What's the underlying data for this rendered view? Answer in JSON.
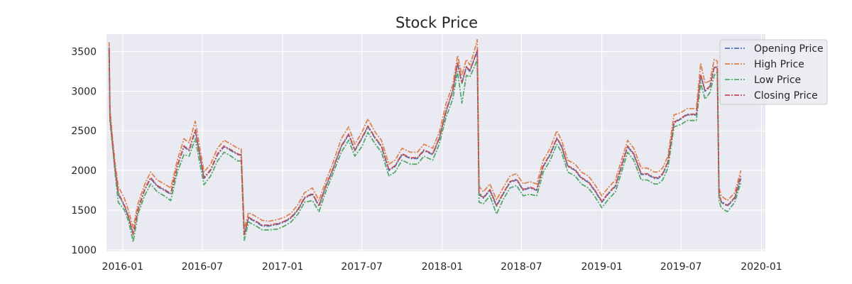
{
  "chart_data": {
    "type": "line",
    "title": "Stock Price",
    "xlabel": "",
    "ylabel": "",
    "x_ticks": [
      "2016-01",
      "2016-07",
      "2017-01",
      "2017-07",
      "2018-01",
      "2018-07",
      "2019-01",
      "2019-07",
      "2020-01"
    ],
    "y_ticks": [
      1000,
      1500,
      2000,
      2500,
      3000,
      3500
    ],
    "xlim": [
      "2015-11-25",
      "2020-01-10"
    ],
    "ylim": [
      980,
      3720
    ],
    "grid": true,
    "legend_position": "top-right",
    "line_style": "dash-dot",
    "x": [
      "2015-12-01",
      "2015-12-03",
      "2015-12-08",
      "2015-12-15",
      "2015-12-22",
      "2016-01-05",
      "2016-01-15",
      "2016-01-25",
      "2016-02-05",
      "2016-02-20",
      "2016-03-05",
      "2016-03-20",
      "2016-04-05",
      "2016-04-20",
      "2016-05-05",
      "2016-05-20",
      "2016-06-01",
      "2016-06-15",
      "2016-06-25",
      "2016-07-05",
      "2016-07-20",
      "2016-08-05",
      "2016-08-20",
      "2016-09-05",
      "2016-09-20",
      "2016-09-28",
      "2016-10-05",
      "2016-10-15",
      "2016-11-01",
      "2016-11-15",
      "2016-12-01",
      "2016-12-20",
      "2017-01-05",
      "2017-01-20",
      "2017-02-05",
      "2017-02-20",
      "2017-03-10",
      "2017-03-25",
      "2017-04-10",
      "2017-04-25",
      "2017-05-15",
      "2017-06-01",
      "2017-06-15",
      "2017-07-01",
      "2017-07-15",
      "2017-08-01",
      "2017-08-15",
      "2017-09-01",
      "2017-09-15",
      "2017-10-01",
      "2017-10-20",
      "2017-11-05",
      "2017-11-20",
      "2017-12-10",
      "2017-12-25",
      "2018-01-10",
      "2018-01-25",
      "2018-02-05",
      "2018-02-15",
      "2018-02-25",
      "2018-03-05",
      "2018-03-15",
      "2018-03-22",
      "2018-03-26",
      "2018-04-05",
      "2018-04-20",
      "2018-05-05",
      "2018-05-20",
      "2018-06-05",
      "2018-06-20",
      "2018-07-05",
      "2018-07-20",
      "2018-08-05",
      "2018-08-20",
      "2018-09-05",
      "2018-09-20",
      "2018-10-01",
      "2018-10-15",
      "2018-11-01",
      "2018-11-15",
      "2018-12-01",
      "2018-12-15",
      "2019-01-01",
      "2019-01-15",
      "2019-02-01",
      "2019-02-15",
      "2019-03-01",
      "2019-03-15",
      "2019-04-01",
      "2019-04-15",
      "2019-05-01",
      "2019-05-10",
      "2019-05-20",
      "2019-06-01",
      "2019-06-15",
      "2019-07-01",
      "2019-07-15",
      "2019-07-25",
      "2019-08-05",
      "2019-08-15",
      "2019-08-25",
      "2019-09-05",
      "2019-09-15",
      "2019-09-22",
      "2019-09-26",
      "2019-10-01",
      "2019-10-15",
      "2019-11-01",
      "2019-11-15"
    ],
    "series": [
      {
        "name": "Opening Price",
        "color": "#4c72b0",
        "values": [
          3550,
          2700,
          2400,
          2000,
          1700,
          1550,
          1400,
          1200,
          1500,
          1750,
          1900,
          1800,
          1750,
          1700,
          2050,
          2300,
          2250,
          2500,
          2200,
          1900,
          2000,
          2200,
          2300,
          2250,
          2200,
          2200,
          1200,
          1400,
          1350,
          1300,
          1300,
          1320,
          1350,
          1400,
          1500,
          1650,
          1700,
          1550,
          1800,
          2000,
          2300,
          2450,
          2250,
          2400,
          2550,
          2400,
          2300,
          2000,
          2050,
          2200,
          2150,
          2150,
          2250,
          2200,
          2400,
          2750,
          3000,
          3350,
          3100,
          3300,
          3250,
          3400,
          3500,
          1700,
          1650,
          1750,
          1550,
          1700,
          1850,
          1880,
          1750,
          1780,
          1750,
          2050,
          2200,
          2400,
          2300,
          2050,
          2000,
          1900,
          1850,
          1750,
          1600,
          1700,
          1800,
          2050,
          2300,
          2200,
          1950,
          1950,
          1900,
          1900,
          1950,
          2100,
          2600,
          2650,
          2700,
          2700,
          2700,
          3200,
          3000,
          3050,
          3300,
          3300,
          1700,
          1600,
          1550,
          1650,
          1900
        ]
      },
      {
        "name": "High Price",
        "color": "#dd8452",
        "values": [
          3620,
          2780,
          2450,
          2080,
          1800,
          1650,
          1480,
          1280,
          1580,
          1820,
          1980,
          1880,
          1830,
          1780,
          2130,
          2400,
          2350,
          2620,
          2300,
          1980,
          2080,
          2280,
          2380,
          2330,
          2280,
          2270,
          1260,
          1470,
          1420,
          1370,
          1360,
          1380,
          1410,
          1460,
          1570,
          1720,
          1780,
          1620,
          1870,
          2080,
          2400,
          2550,
          2330,
          2480,
          2650,
          2480,
          2380,
          2080,
          2130,
          2280,
          2230,
          2230,
          2330,
          2280,
          2480,
          2850,
          3080,
          3450,
          3200,
          3400,
          3330,
          3500,
          3650,
          1800,
          1730,
          1830,
          1630,
          1780,
          1930,
          1960,
          1830,
          1860,
          1830,
          2130,
          2280,
          2500,
          2380,
          2130,
          2080,
          1980,
          1930,
          1830,
          1680,
          1780,
          1880,
          2130,
          2380,
          2280,
          2030,
          2030,
          1980,
          1980,
          2030,
          2180,
          2700,
          2730,
          2780,
          2780,
          2780,
          3350,
          3100,
          3130,
          3400,
          3380,
          1780,
          1680,
          1620,
          1720,
          2000
        ]
      },
      {
        "name": "Low Price",
        "color": "#55a868",
        "values": [
          3480,
          2620,
          2350,
          1950,
          1600,
          1500,
          1350,
          1100,
          1450,
          1680,
          1830,
          1730,
          1680,
          1620,
          1980,
          2200,
          2180,
          2400,
          2100,
          1820,
          1930,
          2120,
          2230,
          2180,
          2120,
          2120,
          1120,
          1350,
          1300,
          1250,
          1250,
          1260,
          1300,
          1350,
          1450,
          1600,
          1620,
          1480,
          1740,
          1950,
          2230,
          2380,
          2180,
          2300,
          2480,
          2330,
          2230,
          1930,
          1980,
          2130,
          2080,
          2080,
          2180,
          2130,
          2330,
          2680,
          2900,
          3250,
          2850,
          3200,
          3180,
          3300,
          3400,
          1600,
          1580,
          1680,
          1450,
          1630,
          1780,
          1810,
          1680,
          1700,
          1680,
          1980,
          2130,
          2330,
          2230,
          1980,
          1930,
          1830,
          1780,
          1680,
          1530,
          1630,
          1730,
          1980,
          2230,
          2130,
          1880,
          1880,
          1830,
          1830,
          1880,
          2030,
          2550,
          2580,
          2630,
          2630,
          2630,
          3100,
          2900,
          2980,
          3200,
          3240,
          1620,
          1530,
          1480,
          1600,
          1850
        ]
      },
      {
        "name": "Closing Price",
        "color": "#c44e52",
        "values": [
          3530,
          2680,
          2380,
          2010,
          1720,
          1560,
          1410,
          1190,
          1510,
          1760,
          1910,
          1810,
          1760,
          1710,
          2060,
          2310,
          2260,
          2510,
          2210,
          1910,
          2010,
          2210,
          2310,
          2260,
          2210,
          2190,
          1190,
          1410,
          1360,
          1310,
          1310,
          1330,
          1360,
          1410,
          1510,
          1660,
          1710,
          1560,
          1810,
          2010,
          2310,
          2460,
          2260,
          2410,
          2560,
          2410,
          2310,
          2010,
          2060,
          2210,
          2160,
          2160,
          2260,
          2210,
          2410,
          2760,
          3010,
          3360,
          3110,
          3310,
          3260,
          3410,
          3520,
          1720,
          1660,
          1760,
          1560,
          1710,
          1860,
          1890,
          1760,
          1790,
          1760,
          2060,
          2210,
          2410,
          2310,
          2060,
          2010,
          1910,
          1860,
          1760,
          1610,
          1710,
          1810,
          2060,
          2310,
          2210,
          1960,
          1960,
          1910,
          1910,
          1960,
          2110,
          2610,
          2660,
          2710,
          2710,
          2710,
          3210,
          3010,
          3060,
          3310,
          3290,
          1710,
          1610,
          1560,
          1660,
          1950
        ]
      }
    ]
  }
}
